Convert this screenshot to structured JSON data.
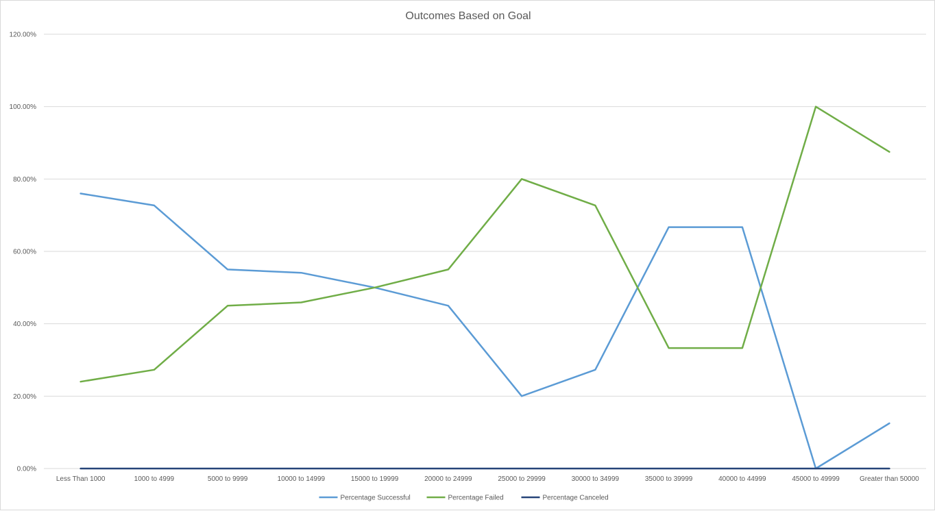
{
  "chart_data": {
    "type": "line",
    "title": "Outcomes Based on Goal",
    "categories": [
      "Less Than 1000",
      "1000 to 4999",
      "5000 to 9999",
      "10000 to 14999",
      "15000 to 19999",
      "20000 to 24999",
      "25000 to 29999",
      "30000 to 34999",
      "35000 to 39999",
      "40000 to 44999",
      "45000 to 49999",
      "Greater than 50000"
    ],
    "y_ticks": [
      "0.00%",
      "20.00%",
      "40.00%",
      "60.00%",
      "80.00%",
      "100.00%",
      "120.00%"
    ],
    "ylim": [
      0,
      1.2
    ],
    "grid": true,
    "legend_position": "bottom",
    "series": [
      {
        "name": "Percentage Successful",
        "color": "#5b9bd5",
        "values": [
          0.76,
          0.727,
          0.55,
          0.541,
          0.5,
          0.45,
          0.2,
          0.273,
          0.667,
          0.667,
          0.0,
          0.125
        ]
      },
      {
        "name": "Percentage Failed",
        "color": "#70ad47",
        "values": [
          0.24,
          0.273,
          0.45,
          0.459,
          0.5,
          0.55,
          0.8,
          0.727,
          0.333,
          0.333,
          1.0,
          0.875
        ]
      },
      {
        "name": "Percentage Canceled",
        "color": "#264478",
        "values": [
          0,
          0,
          0,
          0,
          0,
          0,
          0,
          0,
          0,
          0,
          0,
          0
        ]
      }
    ]
  }
}
